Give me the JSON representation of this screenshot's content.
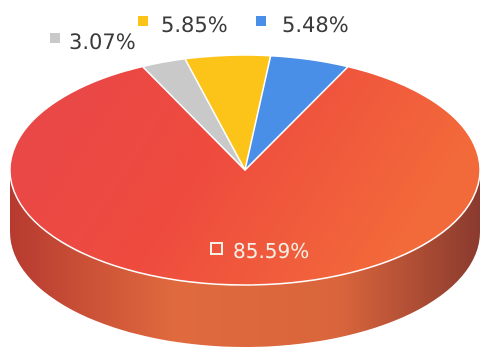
{
  "chart_data": {
    "type": "pie",
    "variant": "3d",
    "slices": [
      {
        "label": "85.59%",
        "value": 85.59,
        "color": "#ee4438"
      },
      {
        "label": "3.07%",
        "value": 3.07,
        "color": "#c9c9c9"
      },
      {
        "label": "5.85%",
        "value": 5.85,
        "color": "#fcc419"
      },
      {
        "label": "5.48%",
        "value": 5.48,
        "color": "#4a8fe7"
      }
    ],
    "title": "",
    "legend": "none"
  }
}
